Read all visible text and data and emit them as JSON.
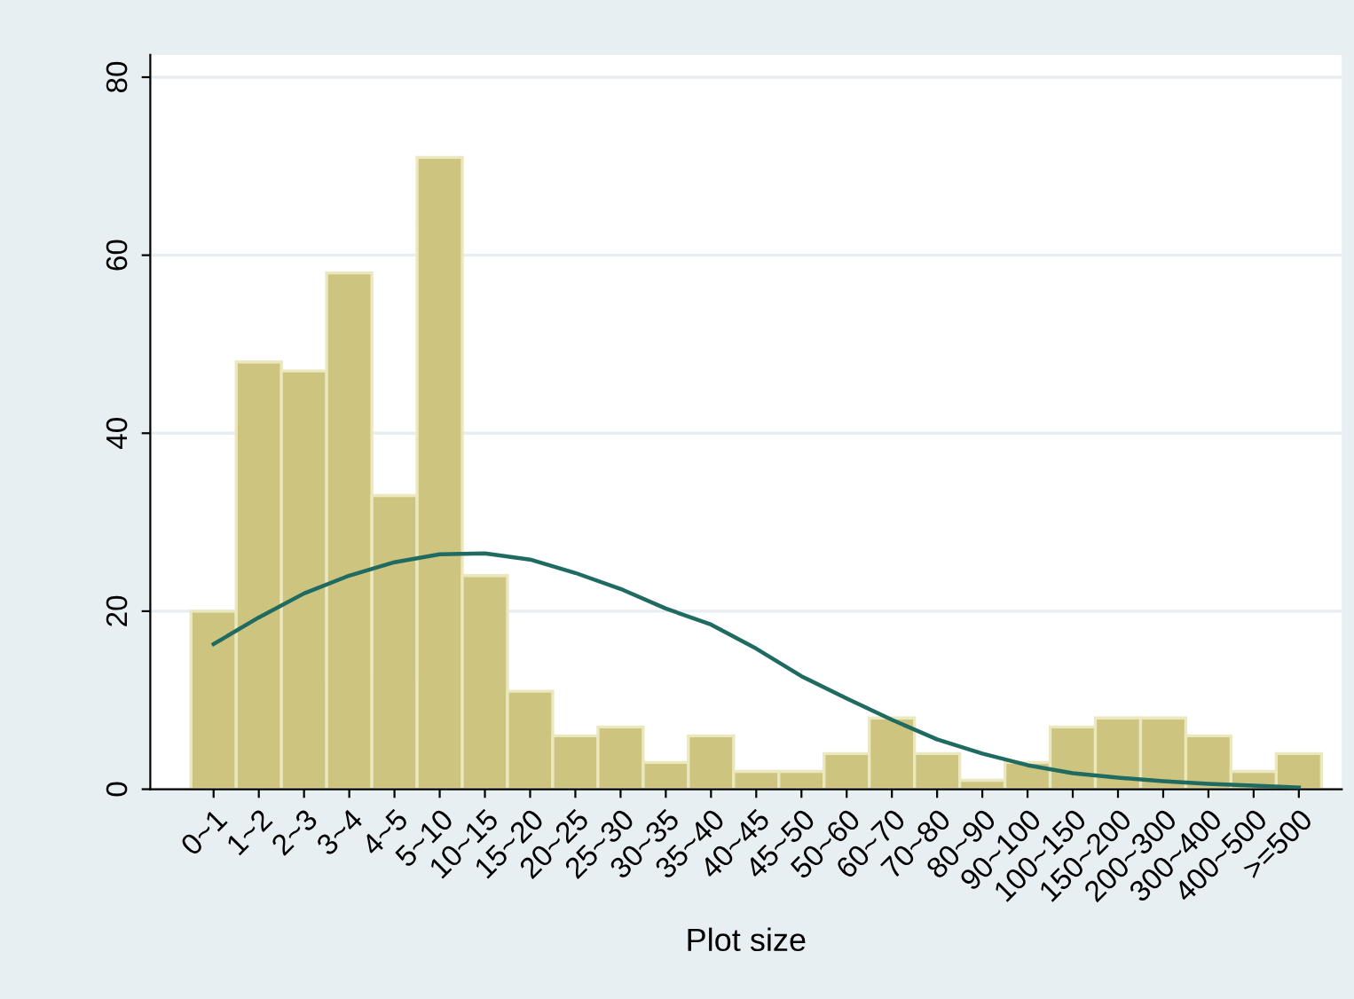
{
  "chart_data": {
    "type": "bar",
    "xlabel": "Plot size",
    "categories": [
      "0~1",
      "1~2",
      "2~3",
      "3~4",
      "4~5",
      "5~10",
      "10~15",
      "15~20",
      "20~25",
      "25~30",
      "30~35",
      "35~40",
      "40~45",
      "45~50",
      "50~60",
      "60~70",
      "70~80",
      "80~90",
      "90~100",
      "100~150",
      "150~200",
      "200~300",
      "300~400",
      "400~500",
      ">=500"
    ],
    "series": [
      {
        "color": "#cdc47f",
        "values": [
          20,
          48,
          47,
          58,
          33,
          71,
          24,
          11,
          6,
          7,
          3,
          6,
          2,
          2,
          4,
          8,
          4,
          1,
          3,
          7,
          8,
          8,
          6,
          2,
          4
        ]
      },
      {
        "type": "line",
        "color": "#1f6b62",
        "values": [
          16.3,
          19.3,
          22,
          24,
          25.5,
          26.4,
          26.5,
          25.8,
          24.3,
          22.5,
          20.3,
          18.5,
          15.8,
          12.7,
          10.2,
          7.8,
          5.6,
          4.0,
          2.7,
          1.8,
          1.3,
          0.9,
          0.6,
          0.4,
          0.2
        ]
      }
    ],
    "ylim": [
      0,
      82.5
    ],
    "yticks": [
      0,
      20,
      40,
      60,
      80
    ],
    "grid": "y",
    "legend": false
  }
}
